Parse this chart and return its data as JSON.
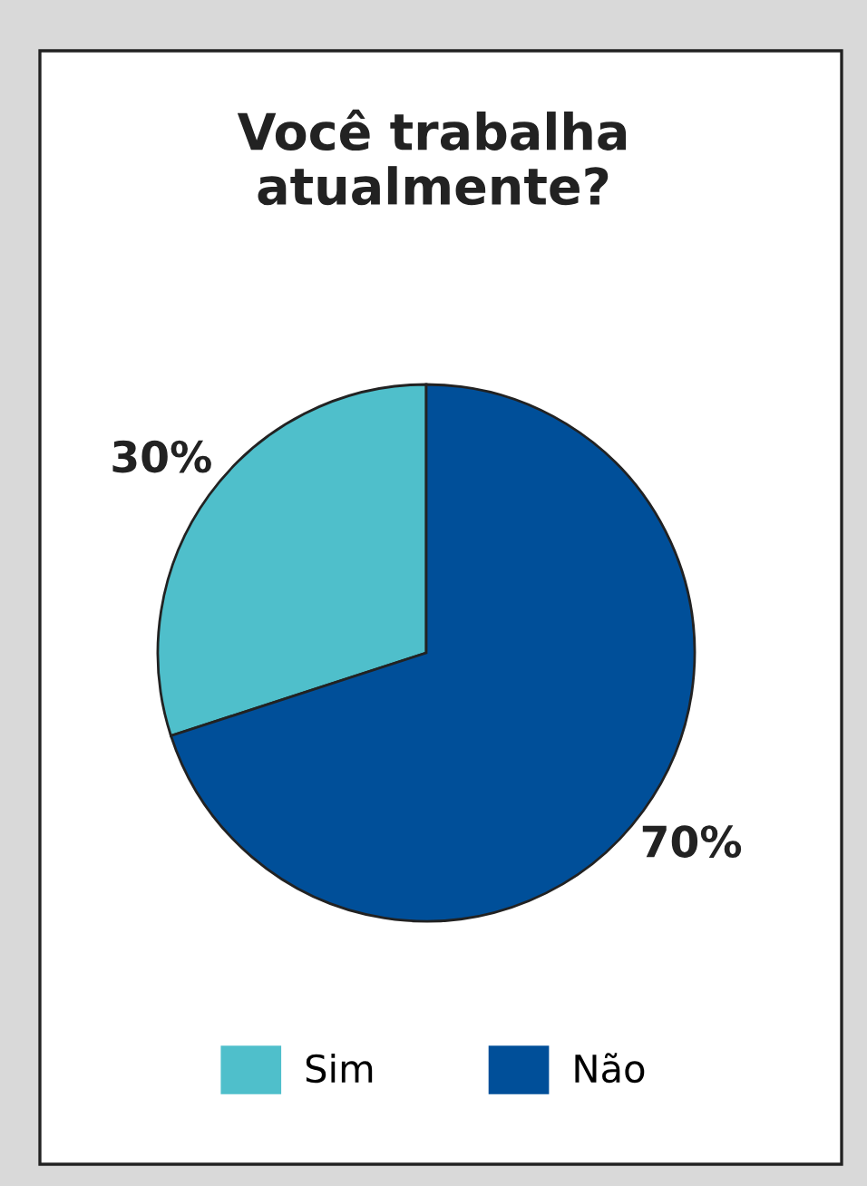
{
  "chart_data": {
    "type": "pie",
    "title": "Você trabalha\natualmente?",
    "categories": [
      "Sim",
      "Não"
    ],
    "values": [
      30,
      70
    ],
    "colors": [
      "#4fbfcb",
      "#004f99"
    ],
    "value_labels": [
      "30%",
      "70%"
    ],
    "legend": "bottom"
  }
}
